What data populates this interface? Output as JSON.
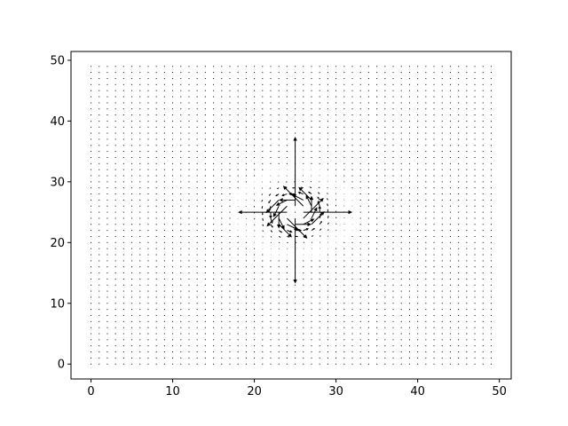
{
  "chart_data": {
    "type": "quiver",
    "title": "",
    "xlabel": "",
    "ylabel": "",
    "xlim": [
      -2.45,
      51.45
    ],
    "ylim": [
      -2.45,
      51.45
    ],
    "xticks": [
      0,
      10,
      20,
      30,
      40,
      50
    ],
    "yticks": [
      0,
      10,
      20,
      30,
      40,
      50
    ],
    "xtick_labels": [
      "0",
      "10",
      "20",
      "30",
      "40",
      "50"
    ],
    "ytick_labels": [
      "0",
      "10",
      "20",
      "30",
      "40",
      "50"
    ],
    "grid": false,
    "field": {
      "pattern": "vortex",
      "grid_start": 0,
      "grid_end": 49,
      "grid_step": 1,
      "center": [
        25,
        25
      ],
      "decay_radius": 2.2,
      "max_magnitude": 9.5,
      "arrow_color": "#000000"
    },
    "arrows": [
      {
        "x": 26,
        "y": 25,
        "u": 6.0,
        "v": 0.0
      },
      {
        "x": 25,
        "y": 26,
        "u": 0.0,
        "v": 8.5
      },
      {
        "x": 24,
        "y": 25,
        "u": -6.0,
        "v": 0.0
      },
      {
        "x": 25,
        "y": 24,
        "u": 0.0,
        "v": -8.0
      },
      {
        "x": 27,
        "y": 27,
        "u": -1.6,
        "v": 1.6
      },
      {
        "x": 23,
        "y": 27,
        "u": -1.6,
        "v": -1.6
      },
      {
        "x": 23,
        "y": 23,
        "u": 1.6,
        "v": -1.6
      },
      {
        "x": 27,
        "y": 23,
        "u": 1.6,
        "v": 1.6
      },
      {
        "x": 27,
        "y": 25,
        "u": 0.0,
        "v": 2.0
      },
      {
        "x": 25,
        "y": 27,
        "u": -2.0,
        "v": 0.0
      },
      {
        "x": 23,
        "y": 25,
        "u": 0.0,
        "v": -2.0
      },
      {
        "x": 25,
        "y": 23,
        "u": 2.0,
        "v": 0.0
      }
    ]
  }
}
